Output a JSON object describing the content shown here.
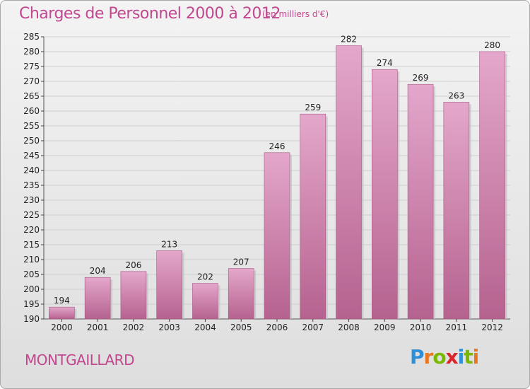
{
  "chart_data": {
    "type": "bar",
    "title": "Charges de Personnel 2000 à 2012",
    "subtitle": "(en milliers d'€)",
    "categories": [
      "2000",
      "2001",
      "2002",
      "2003",
      "2004",
      "2005",
      "2006",
      "2007",
      "2008",
      "2009",
      "2010",
      "2011",
      "2012"
    ],
    "values": [
      194,
      204,
      206,
      213,
      202,
      207,
      246,
      259,
      282,
      274,
      269,
      263,
      280
    ],
    "value_labels": [
      "194",
      "204",
      "206",
      "213",
      "202",
      "207",
      "246",
      "259",
      "282",
      "274",
      "269",
      "263",
      "280"
    ],
    "ylim": [
      190,
      285
    ],
    "yticks": [
      190,
      195,
      200,
      205,
      210,
      215,
      220,
      225,
      230,
      235,
      240,
      245,
      250,
      255,
      260,
      265,
      270,
      275,
      280,
      285
    ],
    "ytick_labels": [
      "190",
      "195",
      "200",
      "205",
      "210",
      "215",
      "220",
      "225",
      "230",
      "235",
      "240",
      "245",
      "250",
      "255",
      "260",
      "265",
      "270",
      "275",
      "280",
      "285"
    ],
    "grid": true,
    "bar_color": "#c0699a"
  },
  "footer": {
    "town": "MONTGAILLARD"
  },
  "logo": {
    "letters": [
      "P",
      "r",
      "o",
      "x",
      "i",
      "t",
      "i"
    ],
    "colors": [
      "#2f8fd8",
      "#e87722",
      "#7ab800",
      "#d9252b",
      "#2f8fd8",
      "#7ab800",
      "#e87722"
    ]
  }
}
